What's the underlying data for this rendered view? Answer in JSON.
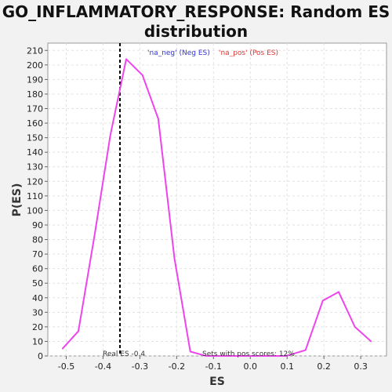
{
  "chart_data": {
    "type": "line",
    "title": "GO_INFLAMMATORY_RESPONSE: Random ES distribution",
    "xlabel": "ES",
    "ylabel": "P(ES)",
    "xlim": [
      -0.55,
      0.37
    ],
    "ylim": [
      0,
      215
    ],
    "x_ticks": [
      -0.5,
      -0.4,
      -0.3,
      -0.2,
      -0.1,
      0.0,
      0.1,
      0.2,
      0.3
    ],
    "x_tick_labels": [
      "-0.5",
      "-0.4",
      "-0.3",
      "-0.2",
      "-0.1",
      "0.0",
      "0.1",
      "0.2",
      "0.3"
    ],
    "y_ticks": [
      0,
      10,
      20,
      30,
      40,
      50,
      60,
      70,
      80,
      90,
      100,
      110,
      120,
      130,
      140,
      150,
      160,
      170,
      180,
      190,
      200,
      210
    ],
    "y_tick_labels": [
      "0",
      "10",
      "20",
      "30",
      "40",
      "50",
      "60",
      "70",
      "80",
      "90",
      "100",
      "110",
      "120",
      "130",
      "140",
      "150",
      "160",
      "170",
      "180",
      "190",
      "200",
      "210"
    ],
    "grid": true,
    "legend_position": "top-center",
    "series": [
      {
        "name": "'na_neg' (Neg ES)",
        "color": "#3333cc",
        "x": [],
        "y": []
      },
      {
        "name": "'na_pos' (Pos ES)",
        "color": "#e03030",
        "x": [],
        "y": []
      },
      {
        "name": "",
        "color": "#ee44ee",
        "x": [
          -0.51,
          -0.467,
          -0.423,
          -0.38,
          -0.337,
          -0.293,
          -0.25,
          -0.206,
          -0.163,
          -0.12,
          -0.076,
          -0.033,
          0.01,
          0.054,
          0.097,
          0.15,
          0.197,
          0.24,
          0.284,
          0.328
        ],
        "y": [
          5,
          17,
          83,
          152,
          204,
          193,
          163,
          67,
          3,
          0,
          0,
          0,
          0,
          0,
          0,
          4,
          38,
          44,
          20,
          10
        ]
      }
    ],
    "reference_line": {
      "x": -0.354,
      "style": "dashed",
      "color": "#000000"
    },
    "annotations": {
      "real_es": "Real ES -0.4",
      "pos_scores": "Sets with pos scores: 12%"
    }
  }
}
